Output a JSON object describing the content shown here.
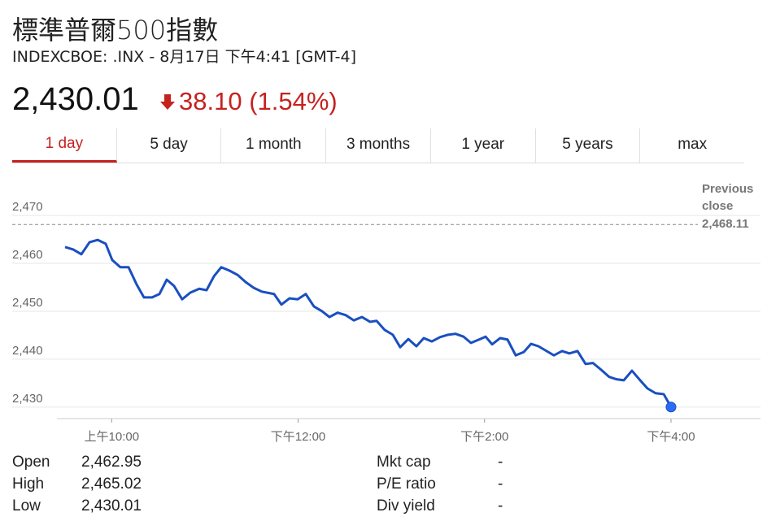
{
  "header": {
    "title": "標準普爾500指數",
    "subtitle": "INDEXCBOE: .INX - 8月17日 下午4:41 [GMT-4]",
    "price": "2,430.01",
    "change": "38.10 (1.54%)"
  },
  "tabs": [
    "1 day",
    "5 day",
    "1 month",
    "3 months",
    "1 year",
    "5 years",
    "max"
  ],
  "chart_data": {
    "type": "line",
    "x": [
      9.5,
      9.587,
      9.675,
      9.762,
      9.849,
      9.936,
      10.006,
      10.093,
      10.181,
      10.268,
      10.346,
      10.434,
      10.512,
      10.591,
      10.669,
      10.756,
      10.844,
      10.94,
      11.018,
      11.097,
      11.175,
      11.262,
      11.35,
      11.437,
      11.524,
      11.611,
      11.742,
      11.821,
      11.908,
      11.995,
      12.082,
      12.17,
      12.257,
      12.336,
      12.423,
      12.51,
      12.597,
      12.685,
      12.772,
      12.842,
      12.929,
      13.016,
      13.095,
      13.182,
      13.269,
      13.348,
      13.435,
      13.522,
      13.609,
      13.688,
      13.775,
      13.854,
      13.941,
      14.011,
      14.081,
      14.168,
      14.246,
      14.334,
      14.421,
      14.499,
      14.578,
      14.665,
      14.744,
      14.831,
      14.91,
      14.997,
      15.084,
      15.163,
      15.25,
      15.337,
      15.416,
      15.494,
      15.581,
      15.669,
      15.747,
      15.834,
      15.922,
      16.0
    ],
    "series": [
      {
        "color": "#1a4fc0",
        "values": [
          2463.4,
          2462.9,
          2461.9,
          2464.4,
          2464.9,
          2464.1,
          2460.7,
          2459.2,
          2459.2,
          2455.6,
          2452.9,
          2452.9,
          2453.6,
          2456.6,
          2455.3,
          2452.5,
          2453.9,
          2454.7,
          2454.4,
          2457.3,
          2459.2,
          2458.5,
          2457.6,
          2456.1,
          2454.9,
          2454.1,
          2453.6,
          2451.4,
          2452.7,
          2452.5,
          2453.6,
          2451.0,
          2450.0,
          2448.8,
          2449.7,
          2449.2,
          2448.1,
          2448.8,
          2447.8,
          2448.0,
          2446.1,
          2445.1,
          2442.5,
          2444.2,
          2442.7,
          2444.4,
          2443.7,
          2444.6,
          2445.1,
          2445.3,
          2444.7,
          2443.4,
          2444.1,
          2444.7,
          2443.1,
          2444.4,
          2444.1,
          2440.8,
          2441.5,
          2443.2,
          2442.7,
          2441.7,
          2440.8,
          2441.7,
          2441.2,
          2441.7,
          2439.0,
          2439.2,
          2437.8,
          2436.3,
          2435.8,
          2435.6,
          2437.6,
          2435.6,
          2433.9,
          2432.9,
          2432.7,
          2430.01
        ]
      }
    ],
    "xlim": [
      8.933,
      16.96
    ],
    "xticks": [
      {
        "value": 10,
        "label": "上午10:00"
      },
      {
        "value": 12,
        "label": "下午12:00"
      },
      {
        "value": 14,
        "label": "下午2:00"
      },
      {
        "value": 16,
        "label": "下午4:00"
      }
    ],
    "ylim": [
      2427.6,
      2478.5
    ],
    "yticks": [
      {
        "value": 2430,
        "label": "2,430"
      },
      {
        "value": 2440,
        "label": "2,440"
      },
      {
        "value": 2450,
        "label": "2,450"
      },
      {
        "value": 2460,
        "label": "2,460"
      },
      {
        "value": 2470,
        "label": "2,470"
      }
    ],
    "grid": true,
    "reference_line": {
      "label": "Previous close",
      "value": 2468.11,
      "value_label": "2,468.11"
    }
  },
  "stats": [
    [
      "Open",
      "2,462.95"
    ],
    [
      "High",
      "2,465.02"
    ],
    [
      "Low",
      "2,430.01"
    ],
    [
      "Mkt cap",
      "-"
    ],
    [
      "P/E ratio",
      "-"
    ],
    [
      "Div yield",
      "-"
    ]
  ]
}
